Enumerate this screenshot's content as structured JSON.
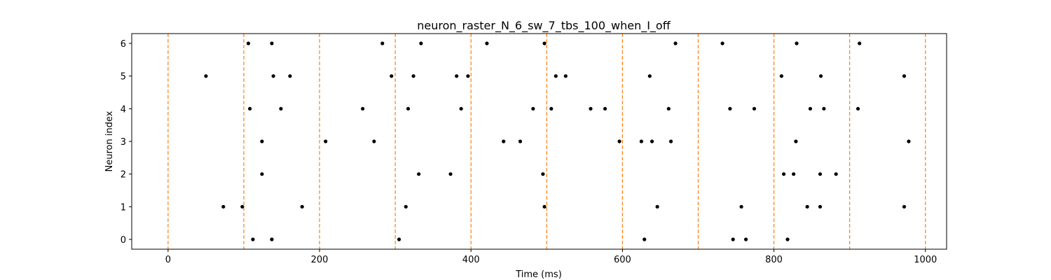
{
  "chart_data": {
    "type": "scatter",
    "title": "neuron_raster_N_6_sw_7_tbs_100_when_I_off",
    "xlabel": "Time (ms)",
    "ylabel": "Neuron index",
    "xlim": [
      -48,
      1028
    ],
    "ylim": [
      -0.3,
      6.3
    ],
    "xticks": [
      0,
      200,
      400,
      600,
      800,
      1000
    ],
    "yticks": [
      0,
      1,
      2,
      3,
      4,
      5,
      6
    ],
    "grid": false,
    "marker_color": "#000000",
    "vline_color": "#ff7f0e",
    "vlines": [
      0,
      100,
      200,
      300,
      400,
      500,
      600,
      700,
      800,
      900,
      1000
    ],
    "spikes": [
      {
        "neuron": 6,
        "times": [
          106,
          137,
          283,
          334,
          421,
          497,
          670,
          732,
          830,
          913
        ]
      },
      {
        "neuron": 5,
        "times": [
          50,
          139,
          161,
          295,
          324,
          381,
          396,
          512,
          525,
          636,
          810,
          862,
          972
        ]
      },
      {
        "neuron": 4,
        "times": [
          108,
          149,
          257,
          317,
          387,
          482,
          506,
          558,
          577,
          661,
          742,
          774,
          848,
          866,
          911
        ]
      },
      {
        "neuron": 3,
        "times": [
          124,
          208,
          272,
          443,
          465,
          596,
          625,
          639,
          664,
          829,
          978
        ]
      },
      {
        "neuron": 2,
        "times": [
          124,
          331,
          373,
          495,
          813,
          826,
          861,
          882
        ]
      },
      {
        "neuron": 1,
        "times": [
          73,
          98,
          177,
          314,
          497,
          646,
          757,
          844,
          861,
          972
        ]
      },
      {
        "neuron": 0,
        "times": [
          112,
          137,
          305,
          629,
          746,
          763,
          818
        ]
      }
    ]
  }
}
